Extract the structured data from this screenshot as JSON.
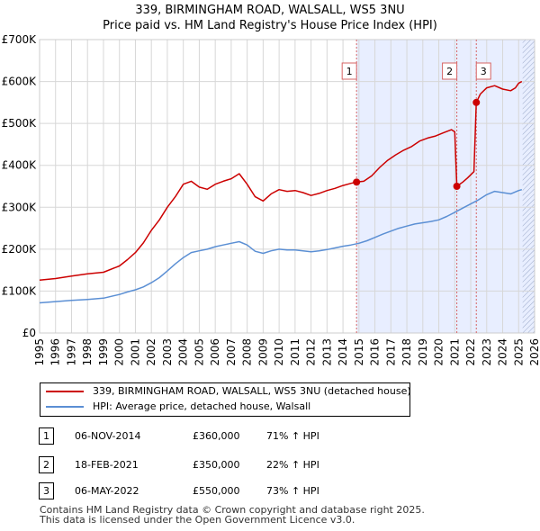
{
  "title_line1": "339, BIRMINGHAM ROAD, WALSALL, WS5 3NU",
  "title_line2": "Price paid vs. HM Land Registry's House Price Index (HPI)",
  "colors": {
    "property": "#cc0000",
    "hpi": "#5b8fd4",
    "shade": "#e8eeff",
    "grid": "#d7d7d7",
    "vline": "#d66464"
  },
  "chart_data": {
    "type": "line",
    "title": "339, BIRMINGHAM ROAD, WALSALL, WS5 3NU — Price paid vs. HM Land Registry's House Price Index (HPI)",
    "xlabel": "",
    "ylabel": "",
    "xlim": [
      1995,
      2026
    ],
    "ylim": [
      0,
      700000
    ],
    "x_ticks": [
      1995,
      1996,
      1997,
      1998,
      1999,
      2000,
      2001,
      2002,
      2003,
      2004,
      2005,
      2006,
      2007,
      2008,
      2009,
      2010,
      2011,
      2012,
      2013,
      2014,
      2015,
      2016,
      2017,
      2018,
      2019,
      2020,
      2021,
      2022,
      2023,
      2024,
      2025,
      2026
    ],
    "y_ticks": [
      0,
      100000,
      200000,
      300000,
      400000,
      500000,
      600000,
      700000
    ],
    "y_tick_labels": [
      "£0",
      "£100K",
      "£200K",
      "£300K",
      "£400K",
      "£500K",
      "£600K",
      "£700K"
    ],
    "grid": true,
    "shaded_region": {
      "from": 2014.85,
      "to": 2026
    },
    "future_hatch": {
      "from": 2025.25,
      "to": 2026
    },
    "series": [
      {
        "name": "339, BIRMINGHAM ROAD, WALSALL, WS5 3NU (detached house)",
        "color": "#cc0000",
        "x": [
          1995,
          1996,
          1997,
          1998,
          1999,
          2000,
          2000.5,
          2001,
          2001.5,
          2002,
          2002.5,
          2003,
          2003.5,
          2004,
          2004.5,
          2005,
          2005.5,
          2006,
          2006.5,
          2007,
          2007.5,
          2008,
          2008.5,
          2009,
          2009.5,
          2010,
          2010.5,
          2011,
          2011.5,
          2012,
          2012.5,
          2013,
          2013.5,
          2014,
          2014.5,
          2014.85,
          2015.3,
          2015.8,
          2016.3,
          2016.8,
          2017.3,
          2017.8,
          2018.3,
          2018.8,
          2019.3,
          2019.8,
          2020.3,
          2020.8,
          2021.0,
          2021.13,
          2021.5,
          2021.8,
          2022.2,
          2022.35,
          2022.6,
          2023.0,
          2023.5,
          2024.0,
          2024.5,
          2024.8,
          2025.0,
          2025.2
        ],
        "y": [
          126000,
          130000,
          136000,
          141000,
          145000,
          160000,
          175000,
          192000,
          215000,
          245000,
          270000,
          300000,
          325000,
          355000,
          362000,
          348000,
          343000,
          355000,
          362000,
          368000,
          380000,
          355000,
          325000,
          315000,
          332000,
          342000,
          338000,
          340000,
          335000,
          328000,
          333000,
          340000,
          345000,
          352000,
          357000,
          360000,
          362000,
          375000,
          395000,
          412000,
          425000,
          436000,
          445000,
          458000,
          465000,
          470000,
          478000,
          485000,
          480000,
          350000,
          360000,
          370000,
          385000,
          550000,
          570000,
          585000,
          590000,
          582000,
          578000,
          585000,
          596000,
          600000
        ]
      },
      {
        "name": "HPI: Average price, detached house, Walsall",
        "color": "#5b8fd4",
        "x": [
          1995,
          1996,
          1997,
          1998,
          1999,
          2000,
          2000.5,
          2001,
          2001.5,
          2002,
          2002.5,
          2003,
          2003.5,
          2004,
          2004.5,
          2005,
          2005.5,
          2006,
          2006.5,
          2007,
          2007.5,
          2008,
          2008.5,
          2009,
          2009.5,
          2010,
          2010.5,
          2011,
          2011.5,
          2012,
          2012.5,
          2013,
          2013.5,
          2014,
          2014.5,
          2015,
          2015.5,
          2016,
          2016.5,
          2017,
          2017.5,
          2018,
          2018.5,
          2019,
          2019.5,
          2020,
          2020.5,
          2021,
          2021.5,
          2022,
          2022.5,
          2023,
          2023.5,
          2024,
          2024.5,
          2025,
          2025.2
        ],
        "y": [
          72000,
          75000,
          78000,
          80000,
          83000,
          92000,
          98000,
          103000,
          110000,
          120000,
          132000,
          148000,
          165000,
          180000,
          192000,
          196000,
          200000,
          206000,
          210000,
          214000,
          218000,
          210000,
          195000,
          190000,
          196000,
          200000,
          198000,
          198000,
          196000,
          194000,
          196000,
          199000,
          203000,
          207000,
          210000,
          214000,
          220000,
          228000,
          236000,
          243000,
          250000,
          255000,
          260000,
          263000,
          266000,
          270000,
          278000,
          288000,
          298000,
          308000,
          318000,
          330000,
          338000,
          335000,
          332000,
          340000,
          342000
        ]
      }
    ],
    "sale_markers": [
      {
        "label": "1",
        "x": 2014.85,
        "y": 360000
      },
      {
        "label": "2",
        "x": 2021.13,
        "y": 350000
      },
      {
        "label": "3",
        "x": 2022.35,
        "y": 550000
      }
    ]
  },
  "legend": {
    "property": "339, BIRMINGHAM ROAD, WALSALL, WS5 3NU (detached house)",
    "hpi": "HPI: Average price, detached house, Walsall"
  },
  "sales": [
    {
      "num": "1",
      "date": "06-NOV-2014",
      "price": "£360,000",
      "hpi": "71% ↑ HPI"
    },
    {
      "num": "2",
      "date": "18-FEB-2021",
      "price": "£350,000",
      "hpi": "22% ↑ HPI"
    },
    {
      "num": "3",
      "date": "06-MAY-2022",
      "price": "£550,000",
      "hpi": "73% ↑ HPI"
    }
  ],
  "footer_line1": "Contains HM Land Registry data © Crown copyright and database right 2025.",
  "footer_line2": "This data is licensed under the Open Government Licence v3.0."
}
